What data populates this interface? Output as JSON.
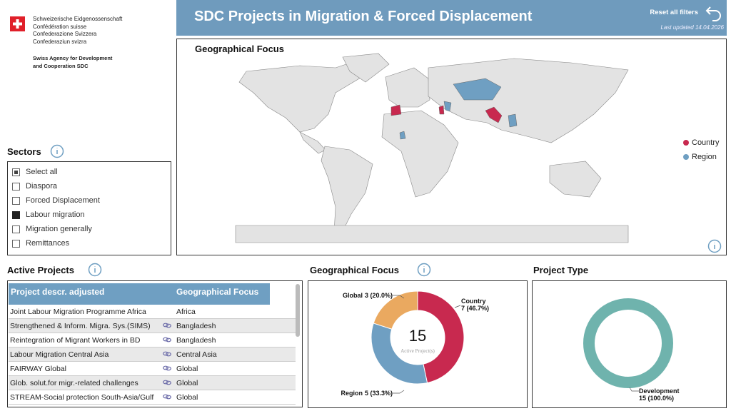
{
  "logo": {
    "lines": [
      "Schweizerische Eidgenossenschaft",
      "Confédération suisse",
      "Confederazione Svizzera",
      "Confederaziun svizra"
    ],
    "agency": [
      "Swiss Agency for Development",
      "and Cooperation SDC"
    ]
  },
  "header": {
    "title": "SDC Projects in Migration & Forced Displacement",
    "reset": "Reset all filters",
    "updated": "Last updated 14.04.2026"
  },
  "map": {
    "title": "Geographical Focus",
    "legend": [
      {
        "name": "Country",
        "color": "#c8294f"
      },
      {
        "name": "Region",
        "color": "#6f9fc2"
      }
    ]
  },
  "sectors": {
    "title": "Sectors",
    "items": [
      {
        "label": "Select all",
        "state": "partial"
      },
      {
        "label": "Diaspora",
        "state": "off"
      },
      {
        "label": "Forced Displacement",
        "state": "off"
      },
      {
        "label": "Labour migration",
        "state": "on"
      },
      {
        "label": "Migration generally",
        "state": "off"
      },
      {
        "label": "Remittances",
        "state": "off"
      }
    ]
  },
  "projects": {
    "title": "Active Projects",
    "columns": [
      "Project descr. adjusted",
      "Geographical Focus"
    ],
    "rows": [
      {
        "project": "Joint Labour Migration Programme Africa",
        "focus": "Africa",
        "link": false
      },
      {
        "project": "Strengthened & Inform. Migra. Sys.(SIMS)",
        "focus": "Bangladesh",
        "link": true
      },
      {
        "project": "Reintegration of Migrant Workers in BD",
        "focus": "Bangladesh",
        "link": true
      },
      {
        "project": "Labour Migration Central Asia",
        "focus": "Central Asia",
        "link": true
      },
      {
        "project": "FAIRWAY Global",
        "focus": "Global",
        "link": true
      },
      {
        "project": "Glob. solut.for migr.-related challenges",
        "focus": "Global",
        "link": true
      },
      {
        "project": "STREAM-Social protection South-Asia/Gulf",
        "focus": "Global",
        "link": true
      }
    ]
  },
  "geo_donut": {
    "title": "Geographical Focus",
    "center_value": "15",
    "center_label": "Active Project(s)",
    "segments": [
      {
        "name": "Country",
        "value": 7,
        "value_label": "7 (46.7%)",
        "color": "#c8294f"
      },
      {
        "name": "Region",
        "value": 5,
        "value_label": "5 (33.3%)",
        "color": "#6f9fc2"
      },
      {
        "name": "Global",
        "value": 3,
        "value_label": "3 (20.0%)",
        "color": "#eaa960"
      }
    ]
  },
  "type_donut": {
    "title": "Project Type",
    "segments": [
      {
        "name": "Development",
        "value": 15,
        "value_label": "15 (100.0%)",
        "color": "#6fb3ad"
      }
    ]
  }
}
